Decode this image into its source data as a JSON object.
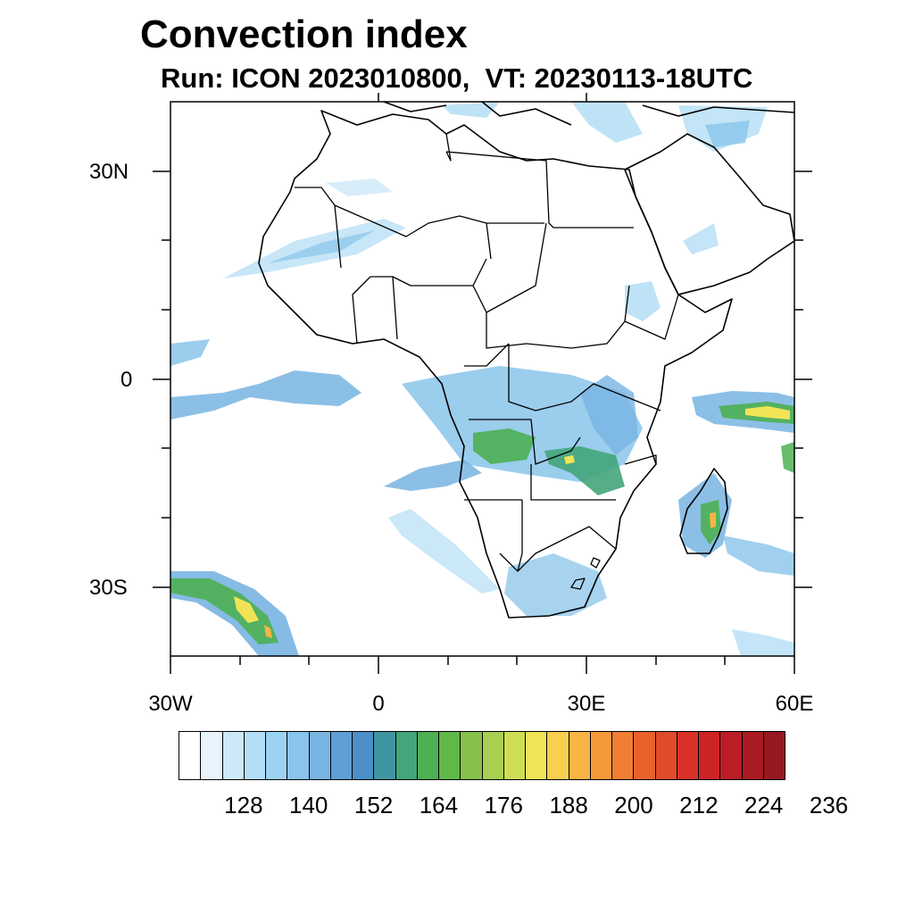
{
  "title": "Convection index",
  "subtitle": "Run: ICON 2023010800,  VT: 20230113-18UTC",
  "map": {
    "lon_range": [
      -30,
      60
    ],
    "lat_range": [
      -40,
      40
    ],
    "lat_ticks": [
      {
        "label": "30N",
        "lat": 30
      },
      {
        "label": "0",
        "lat": 0
      },
      {
        "label": "30S",
        "lat": -30
      }
    ],
    "lon_ticks": [
      {
        "label": "30W",
        "lon": -30
      },
      {
        "label": "0",
        "lon": 0
      },
      {
        "label": "30E",
        "lon": 30
      },
      {
        "label": "60E",
        "lon": 60
      }
    ]
  },
  "colorbar": {
    "labels": [
      "128",
      "140",
      "152",
      "164",
      "176",
      "188",
      "200",
      "212",
      "224",
      "236"
    ],
    "colors": [
      "#ffffff",
      "#e8f4fc",
      "#cde9f8",
      "#b4def5",
      "#9dd3f2",
      "#8ac4ea",
      "#78b4e2",
      "#5f9fd6",
      "#4b8fc6",
      "#3f96a0",
      "#44a57a",
      "#4db052",
      "#60b849",
      "#86c24b",
      "#a8cf52",
      "#cfdd56",
      "#f0e456",
      "#f9cf50",
      "#f7b545",
      "#f59a3b",
      "#f07f33",
      "#e8622c",
      "#e04b2a",
      "#d93128",
      "#cc2327",
      "#bb1e25",
      "#a91b22",
      "#961820"
    ],
    "first_label_index": 2,
    "label_step": 3
  },
  "colors": {
    "coast": "#000000",
    "light_blue": "#b4def5",
    "mid_blue": "#78b4e2",
    "teal": "#3f96a0",
    "green": "#4db052",
    "yellow": "#f0e456",
    "orange": "#f7b545"
  }
}
